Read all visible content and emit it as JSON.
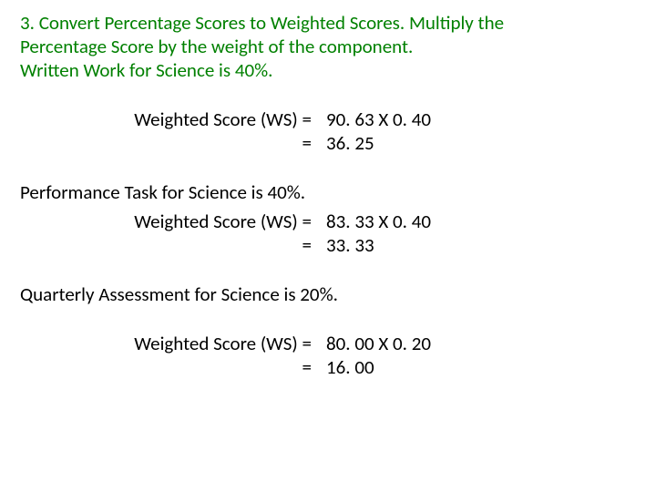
{
  "text_color": "#000000",
  "accent_color": "#008000",
  "background_color": "#ffffff",
  "font_family": "Calibri, Arial, sans-serif",
  "font_size_pt": 16,
  "heading": {
    "line1": "3. Convert Percentage Scores to Weighted Scores. Multiply the",
    "line2": "Percentage Score by the weight of the component.",
    "line3": "Written Work for Science is 40%."
  },
  "section1": {
    "calc1_left": "Weighted  Score (WS) =",
    "calc1_right": "90. 63  X 0. 40",
    "calc2_left": "=",
    "calc2_right": "36. 25"
  },
  "section2": {
    "title": "Performance Task for Science is 40%.",
    "calc1_left": "Weighted  Score (WS) =",
    "calc1_right": "83. 33  X 0. 40",
    "calc2_left": "=",
    "calc2_right": "33. 33"
  },
  "section3": {
    "title": "Quarterly Assessment for Science is 20%.",
    "calc1_left": "Weighted  Score (WS) =",
    "calc1_right": "80. 00  X 0. 20",
    "calc2_left": "=",
    "calc2_right": "16. 00"
  }
}
